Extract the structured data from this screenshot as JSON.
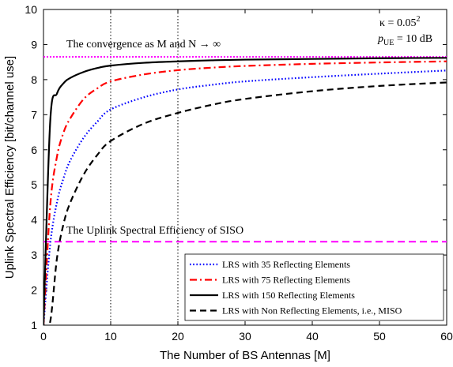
{
  "chart_data": {
    "type": "line",
    "xlabel": "The Number of BS Antennas [M]",
    "ylabel": "Uplink Spectral Efficiency [bit/channel use]",
    "xlim": [
      0,
      60
    ],
    "ylim": [
      1,
      10
    ],
    "xticks": [
      "0",
      "10",
      "20",
      "30",
      "40",
      "50",
      "60"
    ],
    "yticks": [
      "1",
      "2",
      "3",
      "4",
      "5",
      "6",
      "7",
      "8",
      "9",
      "10"
    ],
    "vertical_reference_lines_x": [
      10,
      20
    ],
    "x": [
      1,
      2,
      3,
      4,
      6,
      8,
      10,
      15,
      20,
      25,
      30,
      40,
      50,
      60
    ],
    "series": [
      {
        "name": "LRS with 35 Reflecting Elements",
        "color": "#0000ff",
        "style": "dotted",
        "values": [
          3.3,
          4.5,
          5.2,
          5.7,
          6.35,
          6.8,
          7.15,
          7.5,
          7.72,
          7.85,
          7.95,
          8.07,
          8.17,
          8.26
        ]
      },
      {
        "name": "LRS with 75 Reflecting Elements",
        "color": "#ff0000",
        "style": "dashdot",
        "values": [
          4.4,
          5.8,
          6.5,
          6.9,
          7.45,
          7.75,
          7.95,
          8.15,
          8.27,
          8.34,
          8.39,
          8.45,
          8.49,
          8.52
        ]
      },
      {
        "name": "LRS with 150 Reflecting Elements",
        "color": "#000000",
        "style": "solid",
        "values": [
          6.8,
          7.6,
          7.9,
          8.05,
          8.22,
          8.33,
          8.4,
          8.48,
          8.52,
          8.55,
          8.57,
          8.59,
          8.61,
          8.62
        ]
      },
      {
        "name": "LRS with Non Reflecting Elements, i.e., MISO",
        "color": "#000000",
        "style": "dashed",
        "values": [
          1.1,
          2.9,
          3.9,
          4.5,
          5.3,
          5.85,
          6.25,
          6.75,
          7.05,
          7.28,
          7.45,
          7.67,
          7.82,
          7.92
        ]
      }
    ],
    "reference_lines": [
      {
        "label": "The convergence as M and N → ∞",
        "y": 8.65,
        "color": "#ff00ff",
        "style": "dotted"
      },
      {
        "label": "The Uplink Spectral Efficiency of SISO",
        "y": 3.38,
        "color": "#ff00ff",
        "style": "dashed"
      }
    ],
    "annotations": {
      "kappa": "κ = 0.05",
      "kappa_exp": "2",
      "puc_p": "p",
      "puc_sub": "UE",
      "puc_value": " = 10 dB"
    },
    "legend_placement": "bottom-right",
    "grid": false
  }
}
